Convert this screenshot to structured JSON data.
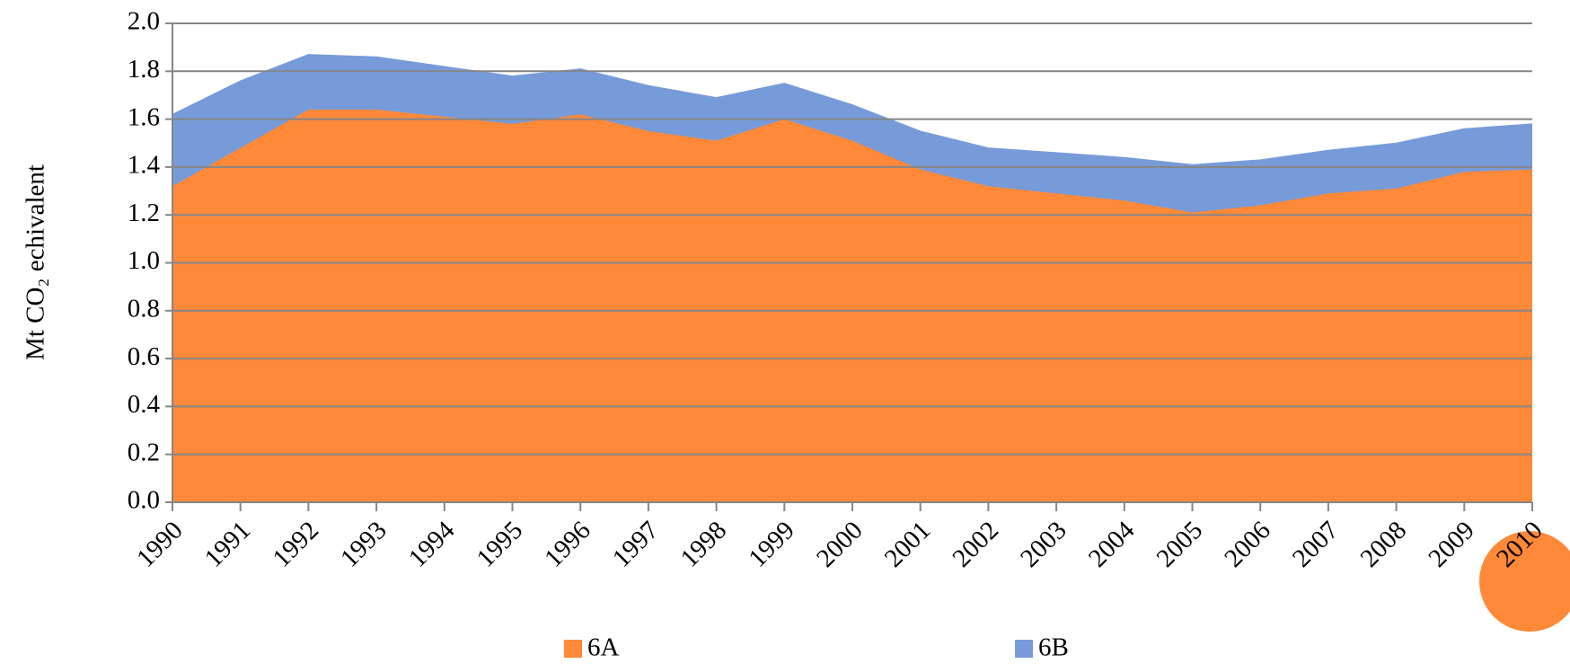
{
  "chart_data": {
    "type": "stacked_area",
    "y_label": "Mt CO₂ echivalent",
    "categories": [
      "1990",
      "1991",
      "1992",
      "1993",
      "1994",
      "1995",
      "1996",
      "1997",
      "1998",
      "1999",
      "2000",
      "2001",
      "2002",
      "2003",
      "2004",
      "2005",
      "2006",
      "2007",
      "2008",
      "2009",
      "2010"
    ],
    "series": [
      {
        "name": "6A",
        "color": "#fd8939",
        "values": [
          1.32,
          1.48,
          1.64,
          1.64,
          1.61,
          1.58,
          1.62,
          1.55,
          1.51,
          1.6,
          1.51,
          1.39,
          1.32,
          1.29,
          1.26,
          1.21,
          1.24,
          1.29,
          1.31,
          1.38,
          1.39
        ]
      },
      {
        "name": "6B",
        "color": "#779bd9",
        "values": [
          0.3,
          0.28,
          0.23,
          0.22,
          0.21,
          0.2,
          0.19,
          0.19,
          0.18,
          0.15,
          0.15,
          0.16,
          0.16,
          0.17,
          0.18,
          0.2,
          0.19,
          0.18,
          0.19,
          0.18,
          0.19
        ]
      }
    ],
    "ylim": [
      0,
      2.0
    ],
    "yticks": [
      {
        "value": 0,
        "label": "0.0"
      },
      {
        "value": 0.2,
        "label": "0.2"
      },
      {
        "value": 0.4,
        "label": "0.4"
      },
      {
        "value": 0.6,
        "label": "0.6"
      },
      {
        "value": 0.8,
        "label": "0.8"
      },
      {
        "value": 1.0,
        "label": "1.0"
      },
      {
        "value": 1.2,
        "label": "1.2"
      },
      {
        "value": 1.4,
        "label": "1.4"
      },
      {
        "value": 1.6,
        "label": "1.6"
      },
      {
        "value": 1.8,
        "label": "1.8"
      },
      {
        "value": 2.0,
        "label": "2.0"
      }
    ],
    "grid": true
  }
}
